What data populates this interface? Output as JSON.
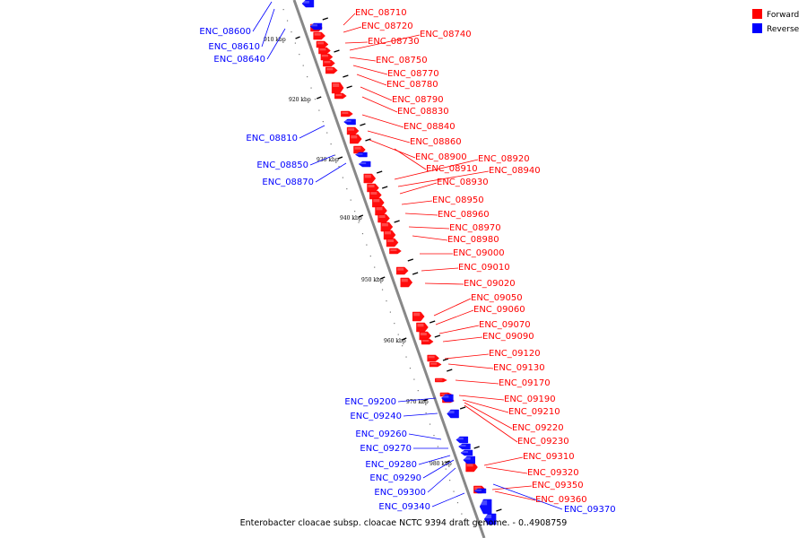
{
  "caption": "Enterobacter cloacae subsp. cloacae NCTC 9394 draft genome. - 0..4908759",
  "legend": [
    {
      "label": "Forward",
      "color": "#ff0000"
    },
    {
      "label": "Reverse",
      "color": "#0000ff"
    }
  ],
  "colors": {
    "forward": "#ff0000",
    "reverse": "#0000ff",
    "backbone": "#888888",
    "tick": "#000000"
  },
  "kbp_labels": [
    "910 kbp",
    "920 kbp",
    "930 kbp",
    "940 kbp",
    "950 kbp",
    "960 kbp",
    "970 kbp",
    "980 kbp"
  ],
  "forward_genes": [
    "ENC_08710",
    "ENC_08720",
    "ENC_08730",
    "ENC_08740",
    "ENC_08750",
    "ENC_08770",
    "ENC_08780",
    "ENC_08790",
    "ENC_08830",
    "ENC_08840",
    "ENC_08860",
    "ENC_08900",
    "ENC_08910",
    "ENC_08920",
    "ENC_08940",
    "ENC_08930",
    "ENC_08950",
    "ENC_08960",
    "ENC_08970",
    "ENC_08980",
    "ENC_09000",
    "ENC_09010",
    "ENC_09020",
    "ENC_09050",
    "ENC_09060",
    "ENC_09070",
    "ENC_09090",
    "ENC_09120",
    "ENC_09130",
    "ENC_09170",
    "ENC_09190",
    "ENC_09210",
    "ENC_09220",
    "ENC_09230",
    "ENC_09310",
    "ENC_09320",
    "ENC_09350",
    "ENC_09360"
  ],
  "reverse_genes": [
    "ENC_08600",
    "ENC_08610",
    "ENC_08640",
    "ENC_08810",
    "ENC_08850",
    "ENC_08870",
    "ENC_09200",
    "ENC_09240",
    "ENC_09260",
    "ENC_09270",
    "ENC_09280",
    "ENC_09290",
    "ENC_09300",
    "ENC_09340",
    "ENC_09370"
  ]
}
